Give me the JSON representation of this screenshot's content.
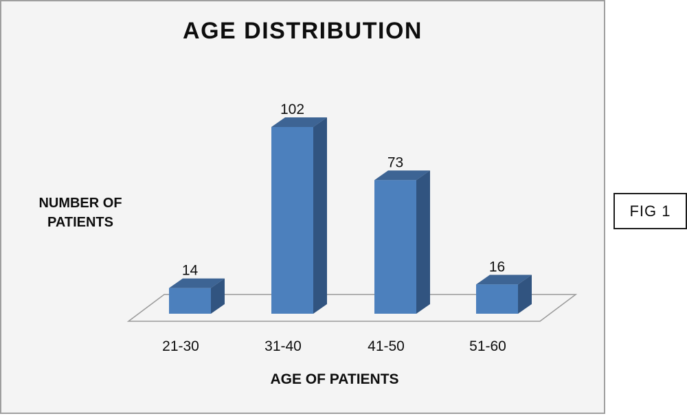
{
  "figure": {
    "caption": "FIG 1"
  },
  "chart_data": {
    "type": "bar",
    "style": "3d",
    "title": "AGE DISTRIBUTION",
    "categories": [
      "21-30",
      "31-40",
      "41-50",
      "51-60"
    ],
    "values": [
      14,
      102,
      73,
      16
    ],
    "xlabel": "AGE OF PATIENTS",
    "ylabel": "NUMBER OF PATIENTS",
    "data_labels": [
      14,
      102,
      73,
      16
    ],
    "legend": "none",
    "gridlines": false,
    "colors": {
      "bar_front": "#4C80BD",
      "bar_top": "#3D6494",
      "bar_side": "#315480",
      "floor_stroke": "#9A9A9A",
      "panel_bg": "#F4F4F4",
      "panel_border": "#9E9E9E",
      "text": "#0d0d0d"
    }
  }
}
